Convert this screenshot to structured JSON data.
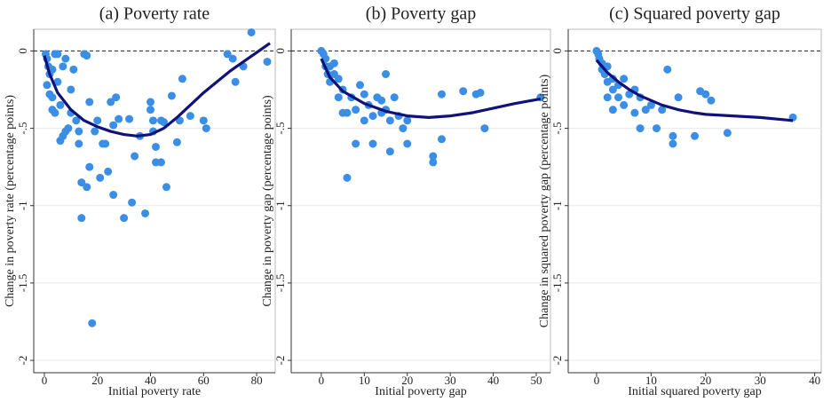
{
  "chart_data": [
    {
      "type": "scatter",
      "title": "(a) Poverty rate",
      "x_label": "Initial poverty rate",
      "y_label": "Change in poverty rate (percentage points)",
      "xlim": [
        -4,
        87
      ],
      "ylim": [
        -2.08,
        0.14
      ],
      "xticks": [
        0,
        20,
        40,
        60,
        80
      ],
      "yticks": [
        0,
        {
          "value": -0.5,
          "label": "-.5"
        },
        -1,
        -1.5,
        -2
      ],
      "grid": true,
      "hline": 0,
      "series": [
        {
          "style": "markers",
          "color": "#3a8ee6",
          "x": [
            0.5,
            1,
            1.5,
            2,
            1,
            2,
            3,
            3,
            4,
            5,
            5,
            6,
            7,
            8,
            7,
            6,
            8,
            10,
            11,
            13,
            13,
            14,
            14,
            15,
            16,
            16,
            17,
            17,
            18,
            19,
            20,
            21,
            22,
            23,
            24,
            25,
            26,
            26,
            27,
            28,
            30,
            32,
            33,
            34,
            36,
            38,
            40,
            40,
            41,
            41,
            42,
            42,
            44,
            44,
            45,
            46,
            48,
            50,
            51,
            52,
            55,
            60,
            61,
            69,
            71,
            72,
            75,
            78,
            84,
            12,
            9,
            4,
            3,
            10
          ],
          "values": [
            -0.02,
            -0.05,
            -0.1,
            -0.15,
            -0.22,
            -0.28,
            -0.3,
            -0.38,
            -0.4,
            -0.02,
            -0.2,
            -0.35,
            -0.1,
            -0.05,
            -0.55,
            -0.58,
            -0.52,
            -0.4,
            -0.12,
            -0.52,
            -0.6,
            -0.85,
            -1.08,
            -0.02,
            -0.03,
            -0.88,
            -0.33,
            -0.75,
            -1.76,
            -0.52,
            -0.45,
            -0.82,
            -0.6,
            -0.6,
            -0.78,
            -0.33,
            -0.48,
            -0.93,
            -0.3,
            -0.44,
            -1.08,
            -0.44,
            -0.98,
            -0.68,
            -0.55,
            -1.05,
            -0.33,
            -0.38,
            -0.45,
            -0.52,
            -0.62,
            -0.72,
            -0.45,
            -0.72,
            -0.46,
            -0.88,
            -0.29,
            -0.59,
            -0.45,
            -0.18,
            -0.42,
            -0.45,
            -0.5,
            -0.02,
            -0.05,
            -0.2,
            -0.1,
            0.12,
            -0.07,
            -0.45,
            -0.5,
            -0.02,
            -0.12,
            -0.25
          ]
        },
        {
          "style": "line",
          "color": "#10127a",
          "x": [
            0,
            2,
            5,
            10,
            15,
            20,
            25,
            30,
            35,
            40,
            45,
            50,
            55,
            60,
            65,
            70,
            75,
            80,
            85
          ],
          "values": [
            -0.03,
            -0.15,
            -0.27,
            -0.38,
            -0.45,
            -0.49,
            -0.52,
            -0.54,
            -0.55,
            -0.54,
            -0.5,
            -0.43,
            -0.35,
            -0.27,
            -0.2,
            -0.13,
            -0.07,
            -0.01,
            0.05
          ]
        }
      ]
    },
    {
      "type": "scatter",
      "title": "(b) Poverty gap",
      "x_label": "Initial poverty gap",
      "y_label": "Change in poverty gap (percentage points)",
      "xlim": [
        -7,
        53.3
      ],
      "ylim": [
        -2.08,
        0.14
      ],
      "xticks": [
        0,
        10,
        20,
        30,
        40,
        50
      ],
      "yticks": [
        0,
        {
          "value": -0.5,
          "label": "-.5"
        },
        -1,
        -1.5,
        -2
      ],
      "grid": true,
      "hline": 0,
      "series": [
        {
          "style": "markers",
          "color": "#3a8ee6",
          "x": [
            0,
            0.5,
            1,
            1,
            1.5,
            2,
            2,
            3,
            4,
            5,
            5,
            6,
            6,
            7,
            8,
            8,
            9,
            10,
            11,
            12,
            12,
            13,
            14,
            15,
            15,
            16,
            16,
            17,
            18,
            19,
            20,
            20,
            26,
            26,
            28,
            28,
            33,
            36,
            37,
            38,
            51,
            3,
            4,
            10,
            14
          ],
          "values": [
            0,
            -0.02,
            -0.05,
            -0.1,
            -0.15,
            -0.1,
            -0.2,
            -0.15,
            -0.18,
            -0.25,
            -0.4,
            -0.82,
            -0.4,
            -0.3,
            -0.38,
            -0.6,
            -0.22,
            -0.28,
            -0.35,
            -0.42,
            -0.6,
            -0.3,
            -0.4,
            -0.15,
            -0.38,
            -0.45,
            -0.65,
            -0.3,
            -0.42,
            -0.5,
            -0.45,
            -0.6,
            -0.68,
            -0.72,
            -0.28,
            -0.57,
            -0.26,
            -0.28,
            -0.27,
            -0.5,
            -0.3,
            -0.08,
            -0.3,
            -0.45,
            -0.32
          ]
        },
        {
          "style": "line",
          "color": "#10127a",
          "x": [
            0,
            2,
            5,
            10,
            15,
            20,
            25,
            30,
            35,
            40,
            45,
            51
          ],
          "values": [
            -0.05,
            -0.17,
            -0.26,
            -0.34,
            -0.39,
            -0.42,
            -0.43,
            -0.42,
            -0.4,
            -0.37,
            -0.34,
            -0.31
          ]
        }
      ]
    },
    {
      "type": "scatter",
      "title": "(c) Squared poverty gap",
      "x_label": "Initial squared poverty gap",
      "y_label": "Change in squared poverty gap (percentage points)",
      "xlim": [
        -5.2,
        41.2
      ],
      "ylim": [
        -2.08,
        0.14
      ],
      "xticks": [
        0,
        10,
        20,
        30,
        40
      ],
      "yticks": [
        0,
        {
          "value": -0.5,
          "label": "-.5"
        },
        -1,
        -1.5,
        -2
      ],
      "grid": true,
      "hline": 0,
      "series": [
        {
          "style": "markers",
          "color": "#3a8ee6",
          "x": [
            0,
            0.3,
            0.5,
            1,
            1,
            1.5,
            2,
            2,
            3,
            3,
            4,
            4,
            5,
            5,
            6,
            7,
            7,
            8,
            8,
            9,
            10,
            11,
            12,
            13,
            14,
            14,
            15,
            18,
            19,
            20,
            21,
            24,
            36,
            2,
            3
          ],
          "values": [
            0,
            -0.02,
            -0.05,
            -0.08,
            -0.12,
            -0.15,
            -0.1,
            -0.2,
            -0.18,
            -0.25,
            -0.3,
            -0.22,
            -0.18,
            -0.35,
            -0.28,
            -0.4,
            -0.25,
            -0.3,
            -0.5,
            -0.38,
            -0.35,
            -0.5,
            -0.38,
            -0.12,
            -0.55,
            -0.6,
            -0.3,
            -0.55,
            -0.26,
            -0.28,
            -0.32,
            -0.53,
            -0.43,
            -0.3,
            -0.38
          ]
        },
        {
          "style": "line",
          "color": "#10127a",
          "x": [
            0,
            2,
            4,
            6,
            8,
            10,
            12,
            15,
            18,
            20,
            25,
            30,
            36
          ],
          "values": [
            -0.06,
            -0.14,
            -0.2,
            -0.25,
            -0.29,
            -0.32,
            -0.35,
            -0.38,
            -0.4,
            -0.41,
            -0.42,
            -0.43,
            -0.45
          ]
        }
      ]
    }
  ]
}
